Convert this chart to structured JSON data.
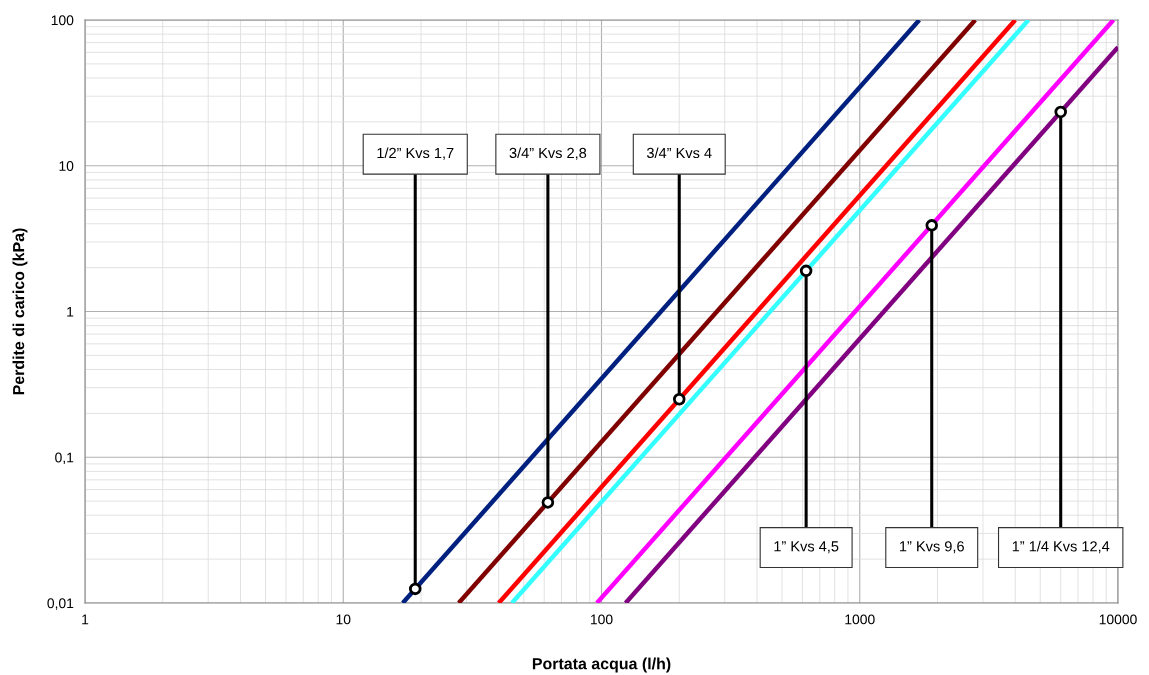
{
  "chart_data": {
    "type": "line",
    "xlabel": "Portata acqua (l/h)",
    "ylabel": "Perdite di carico (kPa)",
    "log": "xy",
    "grid": true,
    "xlim": [
      1,
      10000
    ],
    "ylim": [
      0.01,
      100
    ],
    "xticks": [
      1,
      10,
      100,
      1000,
      10000
    ],
    "yticks": [
      {
        "value": 0.01,
        "label": "0,01"
      },
      {
        "value": 0.1,
        "label": "0,1"
      },
      1,
      10,
      100
    ],
    "series": [
      {
        "color": "#002080",
        "x": [
          17,
          1700
        ],
        "values": [
          0.01,
          100
        ]
      },
      {
        "color": "#800000",
        "x": [
          28,
          2800
        ],
        "values": [
          0.01,
          100
        ]
      },
      {
        "color": "#ff0000",
        "x": [
          40,
          4000
        ],
        "values": [
          0.01,
          100
        ]
      },
      {
        "color": "#33ffff",
        "x": [
          45,
          4500
        ],
        "values": [
          0.01,
          100
        ]
      },
      {
        "color": "#ff00ff",
        "x": [
          96,
          9600
        ],
        "values": [
          0.01,
          100
        ]
      },
      {
        "color": "#800080",
        "x": [
          124,
          10000
        ],
        "values": [
          0.01,
          65
        ]
      }
    ],
    "annotations": [
      {
        "text": "1/2” Kvs 1,7",
        "x": 19,
        "y": 0.0125
      },
      {
        "text": "3/4” Kvs 2,8",
        "x": 62,
        "y": 0.049
      },
      {
        "text": "3/4” Kvs 4",
        "x": 200,
        "y": 0.25
      },
      {
        "text": "1” Kvs 4,5",
        "x": 620,
        "y": 1.9
      },
      {
        "text": "1” Kvs 9,6",
        "x": 1900,
        "y": 3.9
      },
      {
        "text": "1” 1/4 Kvs 12,4",
        "x": 6000,
        "y": 23.4
      }
    ]
  }
}
